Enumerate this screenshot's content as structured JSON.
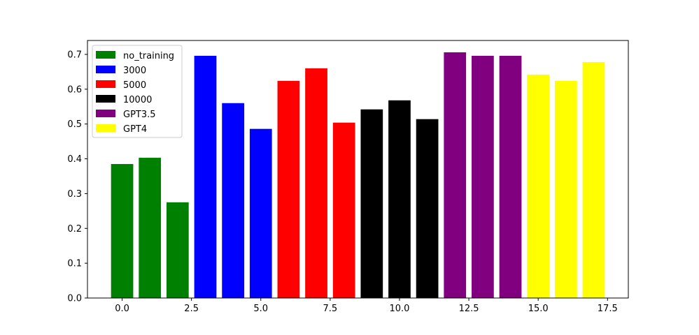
{
  "chart_data": {
    "type": "bar",
    "title": "",
    "xlabel": "",
    "ylabel": "",
    "xlim": [
      -1.25,
      18.25
    ],
    "ylim": [
      0.0,
      0.74
    ],
    "grid": false,
    "legend_placement": "top-left",
    "xticks": [
      0.0,
      2.5,
      5.0,
      7.5,
      10.0,
      12.5,
      15.0,
      17.5
    ],
    "xtick_labels": [
      "0.0",
      "2.5",
      "5.0",
      "7.5",
      "10.0",
      "12.5",
      "15.0",
      "17.5"
    ],
    "yticks": [
      0.0,
      0.1,
      0.2,
      0.3,
      0.4,
      0.5,
      0.6,
      0.7
    ],
    "ytick_labels": [
      "0.0",
      "0.1",
      "0.2",
      "0.3",
      "0.4",
      "0.5",
      "0.6",
      "0.7"
    ],
    "bar_width": 0.8,
    "series": [
      {
        "name": "no_training",
        "color": "#008000",
        "x": [
          0,
          1,
          2
        ],
        "values": [
          0.385,
          0.403,
          0.275
        ]
      },
      {
        "name": "3000",
        "color": "#0000ff",
        "x": [
          3,
          4,
          5
        ],
        "values": [
          0.696,
          0.56,
          0.486
        ]
      },
      {
        "name": "5000",
        "color": "#ff0000",
        "x": [
          6,
          7,
          8
        ],
        "values": [
          0.624,
          0.66,
          0.504
        ]
      },
      {
        "name": "10000",
        "color": "#000000",
        "x": [
          9,
          10,
          11
        ],
        "values": [
          0.542,
          0.568,
          0.514
        ]
      },
      {
        "name": "GPT3.5",
        "color": "#800080",
        "x": [
          12,
          13,
          14
        ],
        "values": [
          0.706,
          0.696,
          0.696
        ]
      },
      {
        "name": "GPT4",
        "color": "#ffff00",
        "x": [
          15,
          16,
          17
        ],
        "values": [
          0.642,
          0.624,
          0.678
        ]
      }
    ]
  }
}
